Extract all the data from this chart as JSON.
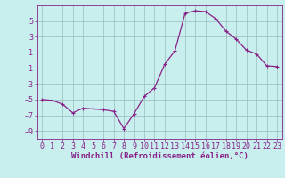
{
  "x": [
    0,
    1,
    2,
    3,
    4,
    5,
    6,
    7,
    8,
    9,
    10,
    11,
    12,
    13,
    14,
    15,
    16,
    17,
    18,
    19,
    20,
    21,
    22,
    23
  ],
  "y": [
    -5.0,
    -5.1,
    -5.6,
    -6.7,
    -6.1,
    -6.2,
    -6.3,
    -6.5,
    -8.7,
    -6.8,
    -4.6,
    -3.5,
    -0.5,
    1.2,
    6.0,
    6.3,
    6.2,
    5.3,
    3.7,
    2.7,
    1.3,
    0.8,
    -0.7,
    -0.8
  ],
  "line_color": "#882288",
  "marker": "+",
  "markersize": 3.5,
  "linewidth": 0.9,
  "bg_color": "#c8eeee",
  "grid_color": "#99bbbb",
  "xlabel": "Windchill (Refroidissement éolien,°C)",
  "xlabel_fontsize": 6.5,
  "tick_fontsize": 6.0,
  "xlim": [
    -0.5,
    23.5
  ],
  "ylim": [
    -10,
    7
  ],
  "yticks": [
    -9,
    -7,
    -5,
    -3,
    -1,
    1,
    3,
    5
  ],
  "xticks": [
    0,
    1,
    2,
    3,
    4,
    5,
    6,
    7,
    8,
    9,
    10,
    11,
    12,
    13,
    14,
    15,
    16,
    17,
    18,
    19,
    20,
    21,
    22,
    23
  ]
}
